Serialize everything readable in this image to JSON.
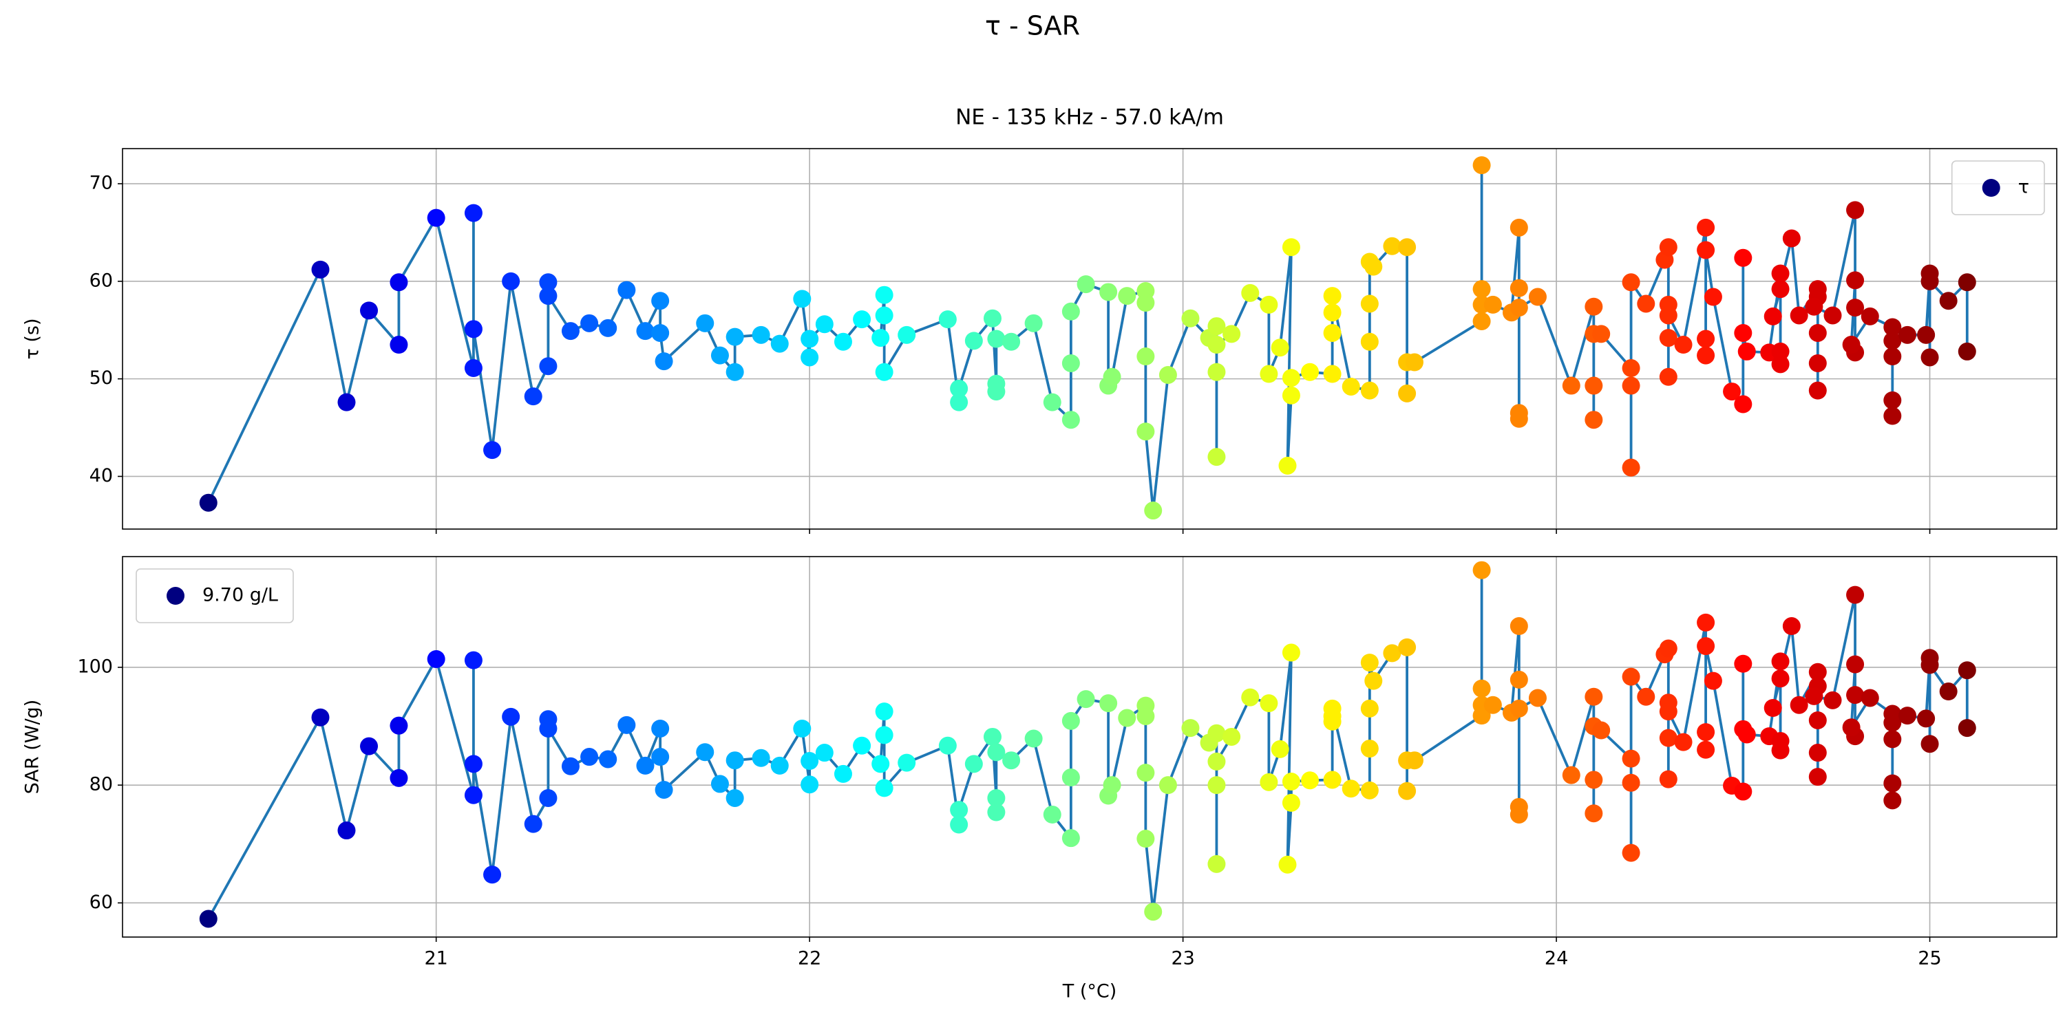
{
  "title": "τ - SAR",
  "chart_data": [
    {
      "type": "line",
      "title": "NE - 135 kHz - 57.0 kA/m",
      "ylabel": "τ (s)",
      "sharex": true,
      "x": [
        20.39,
        20.69,
        20.76,
        20.82,
        20.9,
        20.9,
        21.0,
        21.1,
        21.1,
        21.1,
        21.15,
        21.2,
        21.26,
        21.3,
        21.3,
        21.3,
        21.36,
        21.41,
        21.46,
        21.51,
        21.56,
        21.6,
        21.6,
        21.61,
        21.72,
        21.76,
        21.8,
        21.8,
        21.87,
        21.92,
        21.98,
        22.0,
        22.0,
        22.04,
        22.09,
        22.14,
        22.19,
        22.2,
        22.2,
        22.2,
        22.26,
        22.37,
        22.4,
        22.4,
        22.44,
        22.49,
        22.5,
        22.5,
        22.5,
        22.54,
        22.6,
        22.65,
        22.7,
        22.7,
        22.7,
        22.74,
        22.8,
        22.8,
        22.81,
        22.85,
        22.9,
        22.9,
        22.9,
        22.9,
        22.92,
        22.96,
        23.02,
        23.07,
        23.09,
        23.09,
        23.09,
        23.09,
        23.13,
        23.18,
        23.23,
        23.23,
        23.26,
        23.29,
        23.28,
        23.29,
        23.29,
        23.34,
        23.4,
        23.4,
        23.4,
        23.4,
        23.45,
        23.5,
        23.5,
        23.5,
        23.5,
        23.51,
        23.56,
        23.6,
        23.6,
        23.6,
        23.62,
        23.8,
        23.8,
        23.8,
        23.8,
        23.83,
        23.88,
        23.9,
        23.9,
        23.9,
        23.9,
        23.9,
        23.95,
        24.04,
        24.1,
        24.1,
        24.1,
        24.1,
        24.12,
        24.2,
        24.2,
        24.2,
        24.2,
        24.24,
        24.29,
        24.3,
        24.3,
        24.3,
        24.3,
        24.3,
        24.34,
        24.4,
        24.4,
        24.4,
        24.4,
        24.42,
        24.47,
        24.5,
        24.5,
        24.5,
        24.51,
        24.57,
        24.6,
        24.6,
        24.6,
        24.6,
        24.58,
        24.63,
        24.65,
        24.7,
        24.7,
        24.7,
        24.7,
        24.7,
        24.69,
        24.74,
        24.8,
        24.8,
        24.8,
        24.8,
        24.79,
        24.84,
        24.9,
        24.9,
        24.9,
        24.9,
        24.9,
        24.94,
        24.99,
        25.0,
        25.0,
        25.0,
        25.05,
        25.1,
        25.1
      ],
      "series": [
        {
          "name": "τ",
          "color": "#1f77b4",
          "values": [
            37.3,
            61.2,
            47.6,
            57.0,
            53.5,
            59.9,
            66.5,
            51.1,
            67.0,
            55.1,
            42.7,
            60.0,
            48.2,
            51.3,
            59.9,
            58.5,
            54.9,
            55.7,
            55.2,
            59.1,
            54.9,
            58.0,
            54.7,
            51.8,
            55.7,
            52.4,
            50.7,
            54.3,
            54.5,
            53.6,
            58.2,
            52.2,
            54.1,
            55.6,
            53.8,
            56.1,
            54.2,
            58.6,
            56.5,
            50.7,
            54.5,
            56.1,
            47.6,
            49.0,
            53.9,
            56.2,
            49.5,
            48.7,
            54.1,
            53.8,
            55.7,
            47.6,
            45.8,
            51.6,
            56.9,
            59.7,
            58.9,
            49.3,
            50.2,
            58.5,
            59.0,
            57.8,
            52.3,
            44.6,
            36.5,
            50.4,
            56.2,
            54.2,
            55.4,
            42.0,
            50.7,
            53.5,
            54.6,
            58.8,
            57.6,
            50.5,
            53.2,
            63.5,
            41.1,
            48.3,
            50.1,
            50.7,
            50.5,
            54.7,
            56.8,
            58.5,
            49.2,
            48.8,
            53.8,
            57.7,
            62.0,
            61.5,
            63.6,
            63.5,
            48.5,
            51.7,
            51.7,
            55.9,
            71.9,
            59.2,
            57.6,
            57.6,
            56.8,
            65.5,
            46.5,
            45.9,
            59.3,
            57.3,
            58.4,
            49.3,
            57.4,
            45.8,
            49.3,
            54.6,
            54.6,
            51.1,
            40.9,
            49.3,
            59.9,
            57.7,
            62.2,
            63.5,
            50.2,
            54.2,
            57.6,
            56.5,
            53.5,
            65.5,
            52.4,
            54.1,
            63.2,
            58.4,
            48.7,
            47.4,
            62.4,
            54.7,
            52.8,
            52.7,
            60.8,
            51.5,
            52.8,
            59.2,
            56.4,
            64.4,
            56.5,
            59.2,
            48.8,
            51.6,
            54.7,
            58.4,
            57.4,
            56.5,
            67.3,
            52.7,
            57.3,
            60.1,
            53.5,
            56.4,
            55.3,
            46.2,
            47.8,
            52.3,
            53.9,
            54.5,
            54.5,
            60.8,
            52.2,
            60.0,
            58.0,
            59.9,
            52.8
          ]
        }
      ],
      "colormap": "jet",
      "ylim": [
        34.6,
        73.6
      ],
      "yticks": [
        40,
        50,
        60,
        70
      ],
      "grid": true,
      "legend": "upper right"
    },
    {
      "type": "line",
      "xlabel": "T (°C)",
      "ylabel": "SAR (W/g)",
      "x": [
        20.39,
        20.69,
        20.76,
        20.82,
        20.9,
        20.9,
        21.0,
        21.1,
        21.1,
        21.1,
        21.15,
        21.2,
        21.26,
        21.3,
        21.3,
        21.3,
        21.36,
        21.41,
        21.46,
        21.51,
        21.56,
        21.6,
        21.6,
        21.61,
        21.72,
        21.76,
        21.8,
        21.8,
        21.87,
        21.92,
        21.98,
        22.0,
        22.0,
        22.04,
        22.09,
        22.14,
        22.19,
        22.2,
        22.2,
        22.2,
        22.26,
        22.37,
        22.4,
        22.4,
        22.44,
        22.49,
        22.5,
        22.5,
        22.5,
        22.54,
        22.6,
        22.65,
        22.7,
        22.7,
        22.7,
        22.74,
        22.8,
        22.8,
        22.81,
        22.85,
        22.9,
        22.9,
        22.9,
        22.9,
        22.92,
        22.96,
        23.02,
        23.07,
        23.09,
        23.09,
        23.09,
        23.09,
        23.13,
        23.18,
        23.23,
        23.23,
        23.26,
        23.29,
        23.28,
        23.29,
        23.29,
        23.34,
        23.4,
        23.4,
        23.4,
        23.4,
        23.45,
        23.5,
        23.5,
        23.5,
        23.5,
        23.51,
        23.56,
        23.6,
        23.6,
        23.6,
        23.62,
        23.8,
        23.8,
        23.8,
        23.8,
        23.83,
        23.88,
        23.9,
        23.9,
        23.9,
        23.9,
        23.9,
        23.95,
        24.04,
        24.1,
        24.1,
        24.1,
        24.1,
        24.12,
        24.2,
        24.2,
        24.2,
        24.2,
        24.24,
        24.29,
        24.3,
        24.3,
        24.3,
        24.3,
        24.3,
        24.34,
        24.4,
        24.4,
        24.4,
        24.4,
        24.42,
        24.47,
        24.5,
        24.5,
        24.5,
        24.51,
        24.57,
        24.6,
        24.6,
        24.6,
        24.6,
        24.58,
        24.63,
        24.65,
        24.7,
        24.7,
        24.7,
        24.7,
        24.7,
        24.69,
        24.74,
        24.8,
        24.8,
        24.8,
        24.8,
        24.79,
        24.84,
        24.9,
        24.9,
        24.9,
        24.9,
        24.9,
        24.94,
        24.99,
        25.0,
        25.0,
        25.0,
        25.05,
        25.1,
        25.1
      ],
      "series": [
        {
          "name": "9.70 g/L",
          "color": "#1f77b4",
          "values": [
            57.3,
            91.5,
            72.3,
            86.6,
            81.2,
            90.1,
            101.4,
            78.3,
            101.2,
            83.6,
            64.8,
            91.6,
            73.4,
            77.8,
            91.2,
            89.6,
            83.2,
            84.8,
            84.4,
            90.2,
            83.3,
            89.6,
            84.8,
            79.2,
            85.6,
            80.2,
            77.8,
            84.2,
            84.6,
            83.3,
            89.6,
            80.1,
            84.1,
            85.5,
            81.9,
            86.7,
            83.6,
            92.5,
            88.5,
            79.5,
            83.8,
            86.7,
            73.3,
            75.8,
            83.6,
            88.2,
            77.8,
            75.4,
            85.6,
            84.2,
            87.9,
            75.0,
            71.0,
            81.3,
            90.9,
            94.6,
            93.9,
            78.2,
            80.0,
            91.4,
            93.5,
            91.7,
            82.1,
            70.9,
            58.5,
            80.0,
            89.7,
            87.2,
            88.8,
            66.6,
            80.0,
            84.0,
            88.2,
            94.9,
            93.9,
            80.5,
            86.1,
            102.5,
            66.5,
            77.0,
            80.6,
            80.8,
            80.9,
            90.8,
            91.7,
            93.0,
            79.4,
            79.1,
            86.2,
            93.0,
            100.8,
            97.7,
            102.4,
            103.4,
            79.0,
            84.2,
            84.2,
            91.8,
            116.5,
            96.4,
            93.6,
            93.6,
            92.3,
            107.0,
            76.3,
            75.0,
            97.9,
            93.0,
            94.8,
            81.7,
            95.0,
            75.2,
            80.9,
            90.0,
            89.3,
            84.5,
            68.5,
            80.4,
            98.4,
            95.0,
            102.2,
            103.2,
            81.0,
            88.0,
            94.0,
            92.5,
            87.3,
            107.6,
            86.0,
            89.0,
            103.6,
            97.7,
            79.9,
            78.9,
            100.6,
            89.5,
            88.6,
            88.3,
            101.0,
            85.9,
            87.5,
            98.1,
            93.1,
            107.0,
            93.6,
            99.2,
            81.4,
            85.5,
            91.0,
            96.8,
            95.1,
            94.4,
            112.3,
            88.3,
            95.3,
            100.5,
            89.8,
            94.8,
            92.1,
            77.4,
            80.3,
            87.8,
            90.6,
            91.8,
            91.3,
            101.6,
            87.0,
            100.4,
            95.9,
            99.5,
            89.7
          ]
        }
      ],
      "colormap": "jet",
      "xlim": [
        20.16,
        25.34
      ],
      "xticks": [
        21,
        22,
        23,
        24,
        25
      ],
      "ylim": [
        54.2,
        118.8
      ],
      "yticks": [
        60,
        80,
        100
      ],
      "grid": true,
      "legend": "upper left"
    }
  ]
}
